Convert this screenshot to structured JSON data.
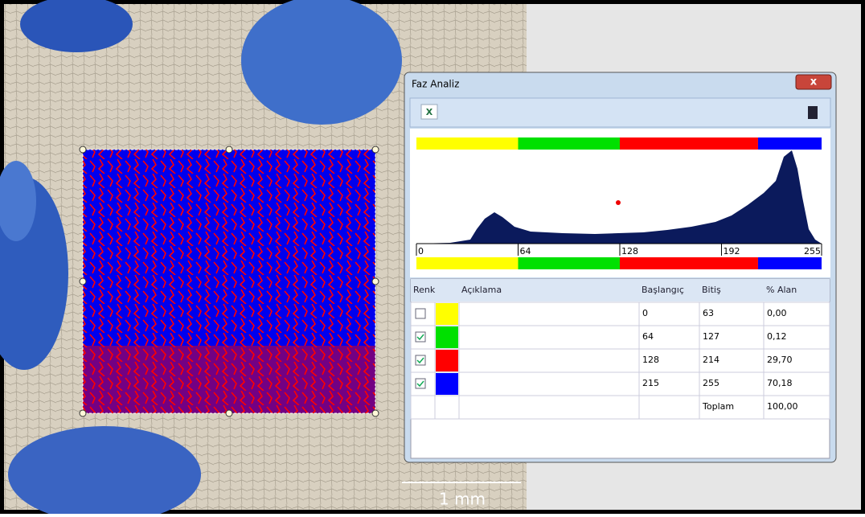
{
  "window": {
    "title": "Faz Analiz"
  },
  "image": {
    "scale_label": "1 mm"
  },
  "histogram": {
    "xlim": [
      0,
      255
    ],
    "ticks": [
      0,
      64,
      128,
      192,
      255
    ]
  },
  "table": {
    "headers": [
      "Renk",
      "Açıklama",
      "Başlangıç",
      "Bitiş",
      "% Alan"
    ],
    "rows": [
      {
        "checked": false,
        "color": "#ffff00",
        "start": 0,
        "end": 63,
        "area": "0,00"
      },
      {
        "checked": true,
        "color": "#00e000",
        "start": 64,
        "end": 127,
        "area": "0,12"
      },
      {
        "checked": true,
        "color": "#ff0000",
        "start": 128,
        "end": 214,
        "area": "29,70"
      },
      {
        "checked": true,
        "color": "#0000ff",
        "start": 215,
        "end": 255,
        "area": "70,18"
      }
    ],
    "total_label": "Toplam",
    "total_value": "100,00"
  }
}
